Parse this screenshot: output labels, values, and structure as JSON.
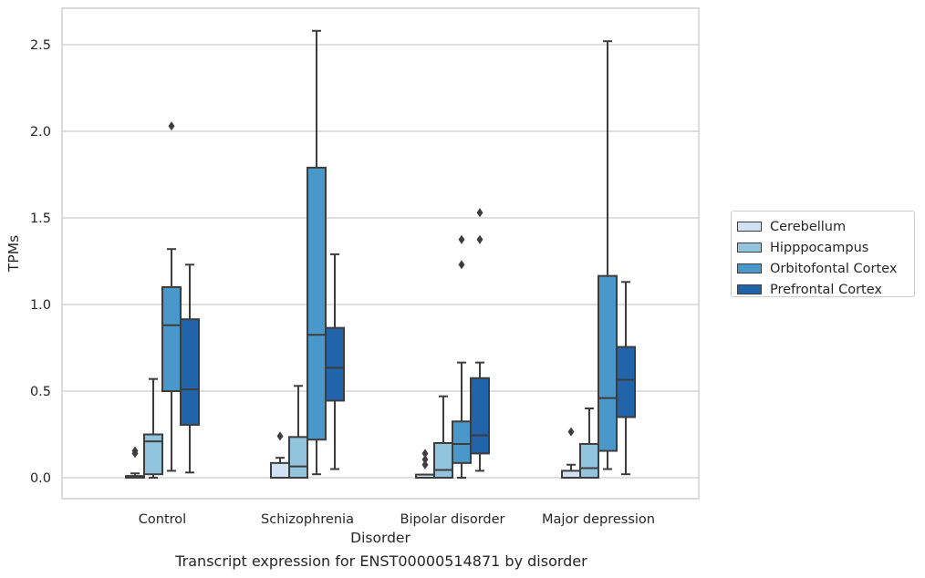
{
  "chart_data": {
    "type": "box",
    "xlabel": "Disorder",
    "ylabel": "TPMs",
    "ylim": [
      -0.125,
      2.73
    ],
    "yticks": [
      "0.0",
      "0.5",
      "1.0",
      "1.5",
      "2.0",
      "2.5"
    ],
    "grid": "horizontal",
    "legend_position": "right",
    "categories": [
      "Control",
      "Schizophrenia",
      "Bipolar disorder",
      "Major depression"
    ],
    "series": [
      {
        "name": "Cerebellum",
        "color": "#cfe1f2",
        "boxes": [
          {
            "whislo": 0.0,
            "q1": 0.0,
            "med": 0.0,
            "q3": 0.01,
            "whishi": 0.025,
            "fliers": [
              0.14,
              0.155
            ]
          },
          {
            "whislo": 0.0,
            "q1": 0.0,
            "med": 0.0,
            "q3": 0.085,
            "whishi": 0.115,
            "fliers": [
              0.24
            ]
          },
          {
            "whislo": 0.0,
            "q1": 0.0,
            "med": 0.0,
            "q3": 0.018,
            "whishi": 0.018,
            "fliers": [
              0.075,
              0.105,
              0.14
            ]
          },
          {
            "whislo": 0.0,
            "q1": 0.0,
            "med": 0.0,
            "q3": 0.04,
            "whishi": 0.075,
            "fliers": [
              0.265
            ]
          }
        ]
      },
      {
        "name": "Hipppocampus",
        "color": "#93c4de",
        "boxes": [
          {
            "whislo": 0.0,
            "q1": 0.02,
            "med": 0.21,
            "q3": 0.25,
            "whishi": 0.57,
            "fliers": []
          },
          {
            "whislo": 0.0,
            "q1": 0.0,
            "med": 0.065,
            "q3": 0.235,
            "whishi": 0.53,
            "fliers": []
          },
          {
            "whislo": 0.0,
            "q1": 0.0,
            "med": 0.045,
            "q3": 0.2,
            "whishi": 0.47,
            "fliers": []
          },
          {
            "whislo": 0.0,
            "q1": 0.0,
            "med": 0.055,
            "q3": 0.195,
            "whishi": 0.4,
            "fliers": []
          }
        ]
      },
      {
        "name": "Orbitofontal Cortex",
        "color": "#4a98c9",
        "boxes": [
          {
            "whislo": 0.04,
            "q1": 0.5,
            "med": 0.88,
            "q3": 1.1,
            "whishi": 1.32,
            "fliers": [
              2.03
            ]
          },
          {
            "whislo": 0.02,
            "q1": 0.22,
            "med": 0.825,
            "q3": 1.79,
            "whishi": 2.58,
            "fliers": []
          },
          {
            "whislo": 0.0,
            "q1": 0.085,
            "med": 0.195,
            "q3": 0.325,
            "whishi": 0.665,
            "fliers": [
              1.23,
              1.375
            ]
          },
          {
            "whislo": 0.05,
            "q1": 0.155,
            "med": 0.46,
            "q3": 1.165,
            "whishi": 2.52,
            "fliers": []
          }
        ]
      },
      {
        "name": "Prefrontal Cortex",
        "color": "#2164aa",
        "boxes": [
          {
            "whislo": 0.03,
            "q1": 0.305,
            "med": 0.51,
            "q3": 0.915,
            "whishi": 1.23,
            "fliers": []
          },
          {
            "whislo": 0.05,
            "q1": 0.445,
            "med": 0.635,
            "q3": 0.865,
            "whishi": 1.29,
            "fliers": []
          },
          {
            "whislo": 0.04,
            "q1": 0.14,
            "med": 0.245,
            "q3": 0.575,
            "whishi": 0.665,
            "fliers": [
              1.375,
              1.53
            ]
          },
          {
            "whislo": 0.02,
            "q1": 0.35,
            "med": 0.565,
            "q3": 0.755,
            "whishi": 1.13,
            "fliers": []
          }
        ]
      }
    ]
  },
  "caption": "Transcript expression for ENST00000514871 by disorder"
}
